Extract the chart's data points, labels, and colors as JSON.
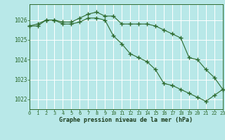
{
  "series1": [
    1025.7,
    1025.8,
    1026.0,
    1026.0,
    1025.9,
    1025.9,
    1026.1,
    1026.3,
    1026.4,
    1026.2,
    1026.2,
    1025.8,
    1025.8,
    1025.8,
    1025.8,
    1025.7,
    1025.5,
    1025.3,
    1025.1,
    1024.1,
    1024.0,
    1023.5,
    1023.1,
    1022.5
  ],
  "series2": [
    1025.7,
    1025.7,
    1026.0,
    1026.0,
    1025.8,
    1025.8,
    1025.9,
    1026.1,
    1026.1,
    1026.0,
    1025.2,
    1024.8,
    1024.3,
    1024.1,
    1023.9,
    1023.5,
    1022.8,
    1022.7,
    1022.5,
    1022.3,
    1022.1,
    1021.9,
    1022.2,
    1022.5
  ],
  "x": [
    0,
    1,
    2,
    3,
    4,
    5,
    6,
    7,
    8,
    9,
    10,
    11,
    12,
    13,
    14,
    15,
    16,
    17,
    18,
    19,
    20,
    21,
    22,
    23
  ],
  "xlim": [
    0,
    23
  ],
  "ylim": [
    1021.5,
    1026.8
  ],
  "yticks": [
    1022,
    1023,
    1024,
    1025,
    1026
  ],
  "xticks": [
    0,
    1,
    2,
    3,
    4,
    5,
    6,
    7,
    8,
    9,
    10,
    11,
    12,
    13,
    14,
    15,
    16,
    17,
    18,
    19,
    20,
    21,
    22,
    23
  ],
  "line_color": "#2d6a2d",
  "bg_color": "#b8e8e8",
  "grid_color": "#ffffff",
  "xlabel": "Graphe pression niveau de la mer (hPa)",
  "xlabel_color": "#1a3a1a",
  "marker": "+",
  "figsize": [
    3.2,
    2.0
  ],
  "dpi": 100
}
